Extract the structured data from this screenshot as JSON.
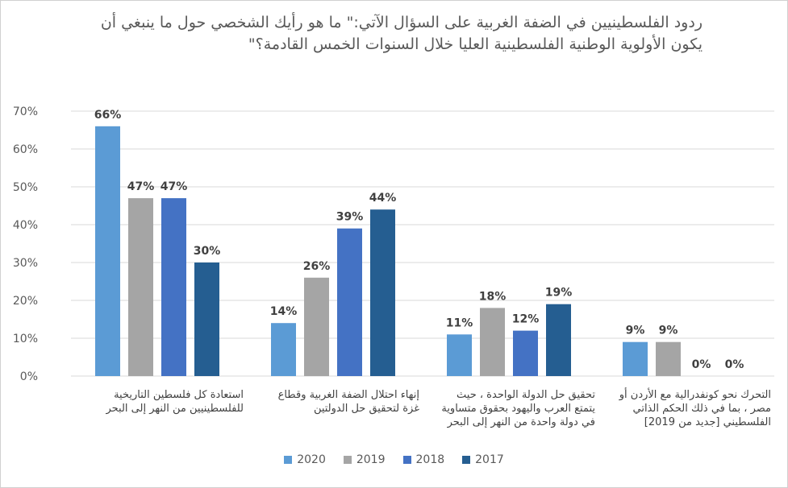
{
  "chart_data": {
    "type": "bar",
    "title_line1": "ردود الفلسطينيين في الضفة الغربية على السؤال الآتي:\" ما هو رأيك الشخصي حول ما ينبغي أن",
    "title_line2": "يكون الأولوية الوطنية الفلسطينية العليا خلال السنوات الخمس القادمة؟\"",
    "categories": [
      [
        "استعادة كل فلسطين التاريخية",
        "للفلسطينيين من النهر إلى البحر"
      ],
      [
        "إنهاء احتلال الضفة الغربية وقطاع",
        "غزة لتحقيق حل الدولتين"
      ],
      [
        "تحقيق حل الدولة الواحدة ، حيث",
        "يتمتع العرب واليهود بحقوق متساوية",
        "في دولة واحدة من النهر إلى البحر"
      ],
      [
        "التحرك نحو كونفدرالية مع الأردن أو",
        "مصر ، بما في ذلك الحكم الذاتي",
        "الفلسطيني [جديد من 2019]"
      ]
    ],
    "series": [
      {
        "name": "2020",
        "color": "#5b9bd5",
        "values": [
          66,
          14,
          11,
          9
        ]
      },
      {
        "name": "2019",
        "color": "#a5a5a5",
        "values": [
          47,
          26,
          18,
          9
        ]
      },
      {
        "name": "2018",
        "color": "#4472c4",
        "values": [
          47,
          39,
          12,
          0
        ]
      },
      {
        "name": "2017",
        "color": "#255e91",
        "values": [
          30,
          44,
          19,
          0
        ]
      }
    ],
    "value_suffix": "%",
    "ylim": [
      0,
      70
    ],
    "yticks": [
      0,
      10,
      20,
      30,
      40,
      50,
      60,
      70
    ],
    "ytick_labels": [
      "0%",
      "10%",
      "20%",
      "30%",
      "40%",
      "50%",
      "60%",
      "70%"
    ],
    "grid": true,
    "legend_position": "bottom"
  }
}
